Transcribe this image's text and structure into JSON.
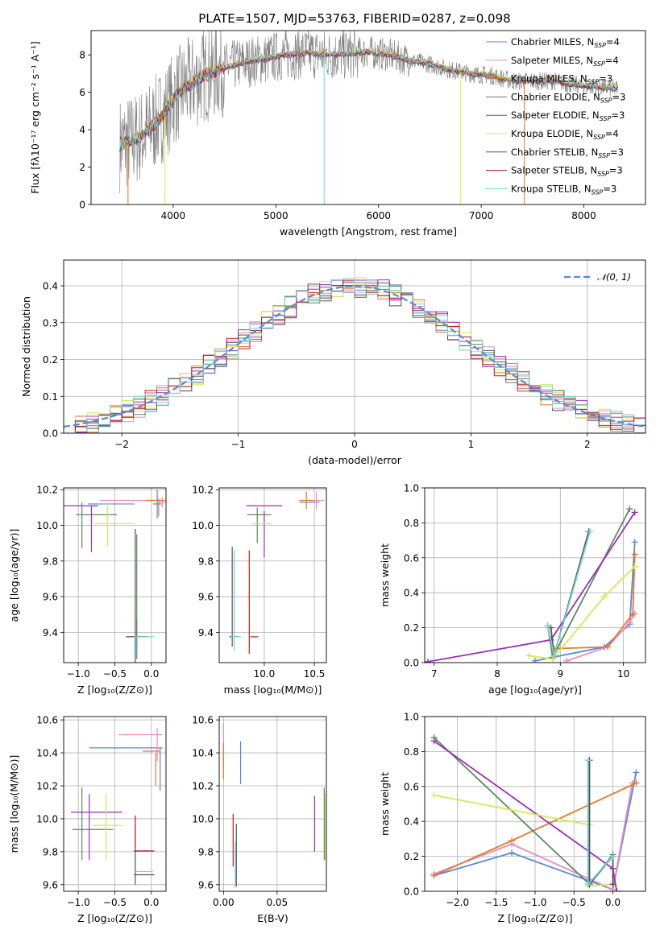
{
  "figure": {
    "title": "PLATE=1507, MJD=53763, FIBERID=0287, z=0.098"
  },
  "chart_data": [
    {
      "id": "spectrum",
      "type": "line",
      "xlabel": "wavelength [Angstrom, rest frame]",
      "ylabel": "Flux [fλ10⁻¹⁷ erg cm⁻² s⁻¹ A⁻¹]",
      "xlim": [
        3200,
        8600
      ],
      "ylim": [
        0,
        9.3
      ],
      "xticks": [
        4000,
        5000,
        6000,
        7000,
        8000
      ],
      "yticks": [
        0,
        2,
        4,
        6,
        8
      ],
      "grid": false,
      "legend_position": "right",
      "legend": [
        {
          "label": "Chabrier MILES, N",
          "sub": "SSP",
          "tail": "=4",
          "color": "#5b87d6"
        },
        {
          "label": "Salpeter MILES, N",
          "sub": "SSP",
          "tail": "=4",
          "color": "#e98bc4"
        },
        {
          "label": "Kroupa MILES, N",
          "sub": "SSP",
          "tail": "=3",
          "color": "#e8772a"
        },
        {
          "label": "Chabrier ELODIE, N",
          "sub": "SSP",
          "tail": "=3",
          "color": "#5a8a60"
        },
        {
          "label": "Salpeter ELODIE, N",
          "sub": "SSP",
          "tail": "=3",
          "color": "#9a2fb8"
        },
        {
          "label": "Kroupa ELODIE, N",
          "sub": "SSP",
          "tail": "=4",
          "color": "#d4ea55"
        },
        {
          "label": "Chabrier STELIB, N",
          "sub": "SSP",
          "tail": "=3",
          "color": "#555555"
        },
        {
          "label": "Salpeter STELIB, N",
          "sub": "SSP",
          "tail": "=3",
          "color": "#b81d1d"
        },
        {
          "label": "Kroupa STELIB, N",
          "sub": "SSP",
          "tail": "=3",
          "color": "#76d2d2"
        }
      ],
      "continuum": {
        "x": [
          3480,
          3600,
          3700,
          3800,
          3900,
          4000,
          4100,
          4300,
          4500,
          4700,
          4900,
          5100,
          5300,
          5500,
          5700,
          5900,
          6100,
          6300,
          6500,
          6700,
          6900,
          7100,
          7300,
          7500,
          7700,
          7900,
          8100,
          8300
        ],
        "y": [
          3.2,
          3.4,
          3.7,
          4.2,
          4.8,
          5.6,
          6.2,
          6.9,
          7.3,
          7.6,
          7.8,
          8.0,
          8.1,
          8.0,
          8.05,
          8.15,
          8.0,
          7.7,
          7.5,
          7.2,
          7.0,
          6.9,
          6.6,
          6.6,
          6.6,
          6.4,
          6.3,
          6.2
        ]
      }
    },
    {
      "id": "residuals",
      "type": "line",
      "xlabel": "(data-model)/error",
      "ylabel": "Normed distribution",
      "xlim": [
        -2.5,
        2.5
      ],
      "ylim": [
        0,
        0.47
      ],
      "xticks": [
        -2,
        -1,
        0,
        1,
        2
      ],
      "yticks": [
        0.0,
        0.1,
        0.2,
        0.3,
        0.4
      ],
      "grid": true,
      "legend_position": "top-right",
      "legend_label": "𝒩(0, 1)",
      "gaussian": {
        "mean": 0,
        "sigma": 1,
        "color": "#5b87d6"
      },
      "bin_width": 0.1
    },
    {
      "id": "age_vs_Z",
      "type": "scatter",
      "xlabel": "Z [log₁₀(Z/Z⊙)]",
      "ylabel": "age  [log₁₀(age/yr)]",
      "xlim": [
        -1.2,
        0.2
      ],
      "ylim": [
        9.23,
        10.21
      ],
      "xticks": [
        -1.0,
        -0.5,
        0.0
      ],
      "yticks": [
        9.4,
        9.6,
        9.8,
        10.0,
        10.2
      ],
      "grid": true,
      "points": [
        {
          "x": -0.55,
          "y": 10.12,
          "xerr": 0.32,
          "yerr": 0.0,
          "color": "#5b87d6"
        },
        {
          "x": 0.08,
          "y": 10.12,
          "xerr": 0.06,
          "yerr": 0.08,
          "color": "#5b87d6"
        },
        {
          "x": -0.2,
          "y": 9.375,
          "xerr": 0.12,
          "yerr": 0.1,
          "color": "#5b87d6"
        },
        {
          "x": -0.25,
          "y": 10.14,
          "xerr": 0.45,
          "yerr": 0.0,
          "color": "#e98bc4"
        },
        {
          "x": 0.15,
          "y": 10.13,
          "xerr": 0.05,
          "yerr": 0.03,
          "color": "#e98bc4"
        },
        {
          "x": 0.05,
          "y": 10.14,
          "xerr": 0.12,
          "yerr": 0.0,
          "color": "#e8772a"
        },
        {
          "x": 0.1,
          "y": 10.1,
          "xerr": 0.0,
          "yerr": 0.05,
          "color": "#e8772a"
        },
        {
          "x": -0.75,
          "y": 10.06,
          "xerr": 0.28,
          "yerr": 0.0,
          "color": "#5a8a60"
        },
        {
          "x": -0.95,
          "y": 10.0,
          "xerr": 0.0,
          "yerr": 0.13,
          "color": "#5a8a60"
        },
        {
          "x": -0.2,
          "y": 9.6,
          "xerr": 0.0,
          "yerr": 0.35,
          "color": "#5a8a60"
        },
        {
          "x": -0.98,
          "y": 10.11,
          "xerr": 0.25,
          "yerr": 0.0,
          "color": "#9a2fb8"
        },
        {
          "x": -0.82,
          "y": 9.98,
          "xerr": 0.0,
          "yerr": 0.13,
          "color": "#9a2fb8"
        },
        {
          "x": -0.5,
          "y": 10.01,
          "xerr": 0.28,
          "yerr": 0.0,
          "color": "#d4ea55"
        },
        {
          "x": -0.6,
          "y": 10.0,
          "xerr": 0.0,
          "yerr": 0.12,
          "color": "#d4ea55"
        },
        {
          "x": -0.2,
          "y": 9.375,
          "xerr": 0.15,
          "yerr": 0.0,
          "color": "#555555"
        },
        {
          "x": -0.22,
          "y": 9.6,
          "xerr": 0.0,
          "yerr": 0.38,
          "color": "#555555"
        },
        {
          "x": -0.15,
          "y": 9.375,
          "xerr": 0.1,
          "yerr": 0.0,
          "color": "#b81d1d"
        },
        {
          "x": -0.1,
          "y": 9.375,
          "xerr": 0.14,
          "yerr": 0.0,
          "color": "#76d2d2"
        },
        {
          "x": -0.21,
          "y": 9.32,
          "xerr": 0.0,
          "yerr": 0.05,
          "color": "#76d2d2"
        }
      ]
    },
    {
      "id": "age_vs_mass",
      "type": "scatter",
      "xlabel": "mass [log₁₀(M/M⊙)]",
      "ylabel": "",
      "xlim": [
        9.55,
        10.62
      ],
      "ylim": [
        9.23,
        10.21
      ],
      "xticks": [
        10.0,
        10.5
      ],
      "yticks": [
        9.4,
        9.6,
        9.8,
        10.0,
        10.2
      ],
      "grid": true,
      "points": [
        {
          "x": 10.45,
          "y": 10.13,
          "xerr": 0.1,
          "yerr": 0.0,
          "color": "#5b87d6"
        },
        {
          "x": 10.52,
          "y": 10.14,
          "xerr": 0.08,
          "yerr": 0.05,
          "color": "#e98bc4"
        },
        {
          "x": 10.42,
          "y": 10.14,
          "xerr": 0.07,
          "yerr": 0.05,
          "color": "#e8772a"
        },
        {
          "x": 9.95,
          "y": 10.06,
          "xerr": 0.12,
          "yerr": 0.0,
          "color": "#5a8a60"
        },
        {
          "x": 9.93,
          "y": 10.0,
          "xerr": 0.0,
          "yerr": 0.1,
          "color": "#5a8a60"
        },
        {
          "x": 10.0,
          "y": 10.11,
          "xerr": 0.18,
          "yerr": 0.0,
          "color": "#9a2fb8"
        },
        {
          "x": 10.0,
          "y": 9.95,
          "xerr": 0.0,
          "yerr": 0.13,
          "color": "#9a2fb8"
        },
        {
          "x": 9.97,
          "y": 10.01,
          "xerr": 0.1,
          "yerr": 0.0,
          "color": "#d4ea55"
        },
        {
          "x": 9.7,
          "y": 9.375,
          "xerr": 0.05,
          "yerr": 0.0,
          "color": "#555555"
        },
        {
          "x": 9.68,
          "y": 9.6,
          "xerr": 0.0,
          "yerr": 0.28,
          "color": "#555555"
        },
        {
          "x": 9.85,
          "y": 9.57,
          "xerr": 0.0,
          "yerr": 0.29,
          "color": "#b81d1d"
        },
        {
          "x": 9.9,
          "y": 9.375,
          "xerr": 0.04,
          "yerr": 0.0,
          "color": "#b81d1d"
        },
        {
          "x": 9.72,
          "y": 9.375,
          "xerr": 0.05,
          "yerr": 0.0,
          "color": "#76d2d2"
        },
        {
          "x": 9.7,
          "y": 9.58,
          "xerr": 0.0,
          "yerr": 0.28,
          "color": "#76d2d2"
        }
      ]
    },
    {
      "id": "weight_vs_age",
      "type": "line",
      "xlabel": "age  [log₁₀(age/yr)]",
      "ylabel": "mass weight",
      "xlim": [
        6.85,
        10.35
      ],
      "ylim": [
        0,
        1.0
      ],
      "xticks": [
        7,
        8,
        9,
        10
      ],
      "yticks": [
        0.0,
        0.2,
        0.4,
        0.6,
        0.8,
        1.0
      ],
      "grid": true,
      "series": [
        {
          "color": "#5b87d6",
          "x": [
            8.6,
            9.7,
            10.1,
            10.18
          ],
          "y": [
            0.01,
            0.09,
            0.22,
            0.69
          ]
        },
        {
          "color": "#e98bc4",
          "x": [
            9.1,
            9.75,
            10.1,
            10.18
          ],
          "y": [
            0.01,
            0.09,
            0.23,
            0.28
          ]
        },
        {
          "color": "#e8772a",
          "x": [
            8.9,
            9.75,
            10.15,
            10.18
          ],
          "y": [
            0.08,
            0.09,
            0.28,
            0.62
          ]
        },
        {
          "color": "#5a8a60",
          "x": [
            8.8,
            8.88,
            10.1
          ],
          "y": [
            0.21,
            0.03,
            0.88
          ]
        },
        {
          "color": "#9a2fb8",
          "x": [
            6.9,
            8.85,
            10.18
          ],
          "y": [
            0.005,
            0.13,
            0.86
          ]
        },
        {
          "color": "#d4ea55",
          "x": [
            8.5,
            8.88,
            9.7,
            10.18
          ],
          "y": [
            0.04,
            0.02,
            0.38,
            0.55
          ]
        },
        {
          "color": "#555555",
          "x": [
            8.85,
            8.9,
            9.45
          ],
          "y": [
            0.2,
            0.04,
            0.75
          ]
        },
        {
          "color": "#76d2d2",
          "x": [
            8.8,
            8.9,
            9.47
          ],
          "y": [
            0.21,
            0.04,
            0.75
          ]
        }
      ]
    },
    {
      "id": "mass_vs_Z",
      "type": "scatter",
      "xlabel": "Z [log₁₀(Z/Z⊙)]",
      "ylabel": "mass [log₁₀(M/M⊙)]",
      "xlim": [
        -1.2,
        0.2
      ],
      "ylim": [
        9.56,
        10.62
      ],
      "xticks": [
        -1.0,
        -0.5,
        0.0
      ],
      "yticks": [
        9.6,
        9.8,
        10.0,
        10.2,
        10.4,
        10.6
      ],
      "grid": true,
      "points": [
        {
          "x": -0.35,
          "y": 10.43,
          "xerr": 0.5,
          "yerr": 0.0,
          "color": "#5b87d6"
        },
        {
          "x": 0.12,
          "y": 10.3,
          "xerr": 0.0,
          "yerr": 0.13,
          "color": "#5b87d6"
        },
        {
          "x": -0.15,
          "y": 10.51,
          "xerr": 0.3,
          "yerr": 0.0,
          "color": "#e98bc4"
        },
        {
          "x": 0.08,
          "y": 10.45,
          "xerr": 0.0,
          "yerr": 0.1,
          "color": "#e98bc4"
        },
        {
          "x": 0.0,
          "y": 10.41,
          "xerr": 0.12,
          "yerr": 0.0,
          "color": "#e8772a"
        },
        {
          "x": 0.06,
          "y": 10.3,
          "xerr": 0.0,
          "yerr": 0.1,
          "color": "#e8772a"
        },
        {
          "x": -0.8,
          "y": 9.935,
          "xerr": 0.28,
          "yerr": 0.0,
          "color": "#5a8a60"
        },
        {
          "x": -0.95,
          "y": 9.97,
          "xerr": 0.0,
          "yerr": 0.22,
          "color": "#5a8a60"
        },
        {
          "x": -0.75,
          "y": 10.04,
          "xerr": 0.35,
          "yerr": 0.0,
          "color": "#9a2fb8"
        },
        {
          "x": -0.85,
          "y": 9.95,
          "xerr": 0.0,
          "yerr": 0.2,
          "color": "#9a2fb8"
        },
        {
          "x": -0.6,
          "y": 9.96,
          "xerr": 0.2,
          "yerr": 0.0,
          "color": "#d4ea55"
        },
        {
          "x": -0.62,
          "y": 9.95,
          "xerr": 0.0,
          "yerr": 0.2,
          "color": "#d4ea55"
        },
        {
          "x": -0.1,
          "y": 9.66,
          "xerr": 0.14,
          "yerr": 0.0,
          "color": "#555555"
        },
        {
          "x": -0.22,
          "y": 9.78,
          "xerr": 0.0,
          "yerr": 0.18,
          "color": "#555555"
        },
        {
          "x": -0.1,
          "y": 9.805,
          "xerr": 0.14,
          "yerr": 0.0,
          "color": "#b81d1d"
        },
        {
          "x": -0.22,
          "y": 9.92,
          "xerr": 0.0,
          "yerr": 0.1,
          "color": "#b81d1d"
        },
        {
          "x": -0.1,
          "y": 9.68,
          "xerr": 0.12,
          "yerr": 0.0,
          "color": "#76d2d2"
        }
      ]
    },
    {
      "id": "mass_vs_ebv",
      "type": "scatter",
      "xlabel": "E(B-V)",
      "ylabel": "",
      "xlim": [
        -0.004,
        0.096
      ],
      "ylim": [
        9.56,
        10.62
      ],
      "xticks": [
        0.0,
        0.05
      ],
      "yticks": [
        9.6,
        9.8,
        10.0,
        10.2,
        10.4,
        10.6
      ],
      "grid": true,
      "points": [
        {
          "x": 0.016,
          "y": 10.34,
          "xerr": 0.0,
          "yerr": 0.13,
          "color": "#5b87d6"
        },
        {
          "x": 0.0,
          "y": 10.45,
          "xerr": 0.0,
          "yerr": 0.13,
          "color": "#e98bc4"
        },
        {
          "x": 0.0,
          "y": 10.35,
          "xerr": 0.0,
          "yerr": 0.11,
          "color": "#e8772a"
        },
        {
          "x": 0.094,
          "y": 9.97,
          "xerr": 0.0,
          "yerr": 0.22,
          "color": "#5a8a60"
        },
        {
          "x": 0.085,
          "y": 9.97,
          "xerr": 0.0,
          "yerr": 0.17,
          "color": "#9a2fb8"
        },
        {
          "x": 0.095,
          "y": 9.95,
          "xerr": 0.0,
          "yerr": 0.2,
          "color": "#d4ea55"
        },
        {
          "x": 0.012,
          "y": 9.78,
          "xerr": 0.0,
          "yerr": 0.19,
          "color": "#555555"
        },
        {
          "x": 0.009,
          "y": 9.87,
          "xerr": 0.0,
          "yerr": 0.16,
          "color": "#b81d1d"
        },
        {
          "x": 0.011,
          "y": 9.72,
          "xerr": 0.0,
          "yerr": 0.14,
          "color": "#76d2d2"
        }
      ]
    },
    {
      "id": "weight_vs_Z",
      "type": "line",
      "xlabel": "Z [log₁₀(Z/Z⊙)]",
      "ylabel": "mass weight",
      "xlim": [
        -2.42,
        0.42
      ],
      "ylim": [
        0,
        1.0
      ],
      "xticks": [
        -2.0,
        -1.5,
        -1.0,
        -0.5,
        0.0
      ],
      "yticks": [
        0.0,
        0.2,
        0.4,
        0.6,
        0.8,
        1.0
      ],
      "grid": true,
      "series": [
        {
          "color": "#5b87d6",
          "x": [
            -2.3,
            -1.3,
            0.0,
            0.3
          ],
          "y": [
            0.09,
            0.22,
            0.01,
            0.68
          ]
        },
        {
          "color": "#e98bc4",
          "x": [
            -2.3,
            -1.3,
            0.0,
            0.25
          ],
          "y": [
            0.1,
            0.27,
            0.01,
            0.62
          ]
        },
        {
          "color": "#e8772a",
          "x": [
            -2.3,
            -1.3,
            0.3
          ],
          "y": [
            0.09,
            0.29,
            0.62
          ]
        },
        {
          "color": "#5a8a60",
          "x": [
            -2.3,
            -0.3,
            0.0
          ],
          "y": [
            0.88,
            0.04,
            0.21
          ]
        },
        {
          "color": "#9a2fb8",
          "x": [
            -2.3,
            0.0,
            0.05
          ],
          "y": [
            0.86,
            0.13,
            0.0
          ]
        },
        {
          "color": "#d4ea55",
          "x": [
            -2.3,
            -0.3
          ],
          "y": [
            0.55,
            0.38
          ]
        },
        {
          "color": "#d4ea55",
          "x": [
            -0.3,
            0.0
          ],
          "y": [
            0.03,
            0.04
          ]
        },
        {
          "color": "#555555",
          "x": [
            -0.3,
            -0.3,
            0.0,
            0.0
          ],
          "y": [
            0.75,
            0.04,
            0.2,
            0.04
          ]
        },
        {
          "color": "#76d2d2",
          "x": [
            -0.32,
            -0.32,
            0.0
          ],
          "y": [
            0.75,
            0.04,
            0.2
          ]
        }
      ]
    }
  ]
}
